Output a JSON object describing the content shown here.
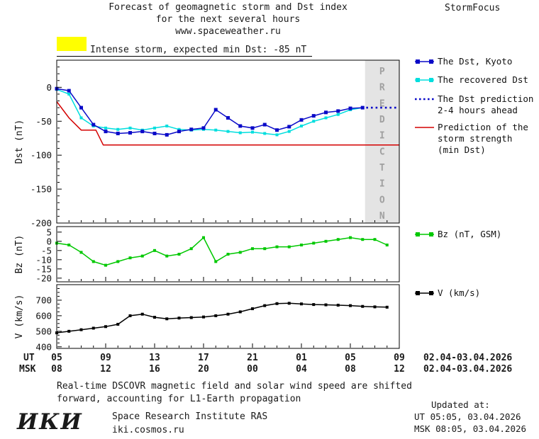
{
  "header": {
    "title_line1": "Forecast of geomagnetic storm and Dst index",
    "title_line2": "for the next several hours",
    "title_line3": "www.spaceweather.ru",
    "brand": "StormFocus"
  },
  "alert": {
    "swatch_color": "#ffff00",
    "text": "Intense storm, expected min Dst: -85 nT"
  },
  "legend": {
    "dst_kyoto": {
      "label": "The Dst, Kyoto",
      "color": "#0a0ac8",
      "marker": "square-line"
    },
    "recovered": {
      "label": "The recovered Dst",
      "color": "#00dede",
      "marker": "square-line"
    },
    "prediction": {
      "label_line1": "The Dst prediction",
      "label_line2": "2-4 hours ahead",
      "color": "#0a0ac8",
      "marker": "dotted-line"
    },
    "storm_strength": {
      "label_line1": "Prediction of the",
      "label_line2": "storm strength",
      "label_line3": "(min Dst)",
      "color": "#d40000",
      "marker": "line"
    },
    "bz": {
      "label": "Bz (nT, GSM)",
      "color": "#00c800",
      "marker": "square-line"
    },
    "v": {
      "label": "V (km/s)",
      "color": "#000000",
      "marker": "square-line"
    }
  },
  "axis": {
    "ut_label": "UT",
    "msk_label": "MSK",
    "tick_positions": [
      0,
      4,
      8,
      12,
      16,
      20,
      24,
      28
    ],
    "ut_ticks": [
      "05",
      "09",
      "13",
      "17",
      "21",
      "01",
      "05",
      "09"
    ],
    "msk_ticks": [
      "08",
      "12",
      "16",
      "20",
      "00",
      "04",
      "08",
      "12"
    ],
    "ut_date_range": "02.04-03.04.2026",
    "msk_date_range": "02.04-03.04.2026"
  },
  "chart_data": [
    {
      "type": "line",
      "ylabel": "Dst (nT)",
      "xlim": [
        0,
        28
      ],
      "ylim": [
        -200,
        40
      ],
      "yticks": [
        0,
        -50,
        -100,
        -150,
        -200
      ],
      "ytick_minor": 10,
      "band": {
        "start": 25.2,
        "label": "PREDICTION",
        "fill": "#e4e4e4",
        "text_color": "#a0a0a0"
      },
      "series": [
        {
          "name": "storm-strength-prediction",
          "color": "#d40000",
          "x": [
            0,
            1,
            2,
            3.2,
            3.8,
            28
          ],
          "y": [
            -21,
            -45,
            -63,
            -63,
            -85,
            -85
          ]
        },
        {
          "name": "recovered-dst",
          "color": "#00dede",
          "marker": "square",
          "marker_size": 4,
          "x": [
            0,
            1,
            2,
            3,
            4,
            5,
            6,
            7,
            8,
            9,
            10,
            11,
            12,
            13,
            14,
            15,
            16,
            17,
            18,
            19,
            20,
            21,
            22,
            23,
            24,
            25
          ],
          "y": [
            -3,
            -10,
            -45,
            -57,
            -60,
            -62,
            -60,
            -63,
            -60,
            -57,
            -62,
            -63,
            -62,
            -63,
            -65,
            -67,
            -66,
            -68,
            -70,
            -65,
            -57,
            -50,
            -45,
            -40,
            -33,
            -30
          ]
        },
        {
          "name": "dst-kyoto",
          "color": "#0a0ac8",
          "marker": "square",
          "marker_size": 5,
          "x": [
            0,
            1,
            2,
            3,
            4,
            5,
            6,
            7,
            8,
            9,
            10,
            11,
            12,
            13,
            14,
            15,
            16,
            17,
            18,
            19,
            20,
            21,
            22,
            23,
            24,
            25
          ],
          "y": [
            -2,
            -5,
            -30,
            -55,
            -65,
            -68,
            -67,
            -65,
            -68,
            -70,
            -65,
            -62,
            -60,
            -33,
            -45,
            -57,
            -60,
            -55,
            -63,
            -58,
            -48,
            -42,
            -37,
            -35,
            -31,
            -30
          ]
        },
        {
          "name": "dst-prediction",
          "color": "#0a0ac8",
          "style": "dotted",
          "x": [
            25.3,
            28
          ],
          "y": [
            -30,
            -30
          ]
        }
      ]
    },
    {
      "type": "line",
      "ylabel": "Bz (nT)",
      "xlim": [
        0,
        28
      ],
      "ylim": [
        -22,
        8
      ],
      "yticks": [
        5,
        0,
        -5,
        -10,
        -15,
        -20
      ],
      "series": [
        {
          "name": "bz",
          "color": "#00c800",
          "marker": "square",
          "marker_size": 4,
          "x": [
            0,
            1,
            2,
            3,
            4,
            5,
            6,
            7,
            8,
            9,
            10,
            11,
            12,
            13,
            14,
            15,
            16,
            17,
            18,
            19,
            20,
            21,
            22,
            23,
            24,
            25,
            26,
            27
          ],
          "y": [
            -1,
            -2,
            -6,
            -11,
            -13,
            -11,
            -9,
            -8,
            -5,
            -8,
            -7,
            -4,
            2,
            -11,
            -7,
            -6,
            -4,
            -4,
            -3,
            -3,
            -2,
            -1,
            0,
            1,
            2,
            1,
            1,
            -2
          ]
        }
      ]
    },
    {
      "type": "line",
      "ylabel": "V (km/s)",
      "xlim": [
        0,
        28
      ],
      "ylim": [
        390,
        800
      ],
      "yticks": [
        400,
        500,
        600,
        700
      ],
      "ytick_minor": 25,
      "series": [
        {
          "name": "v",
          "color": "#000000",
          "marker": "square",
          "marker_size": 4,
          "x": [
            0,
            1,
            2,
            3,
            4,
            5,
            6,
            7,
            8,
            9,
            10,
            11,
            12,
            13,
            14,
            15,
            16,
            17,
            18,
            19,
            20,
            21,
            22,
            23,
            24,
            25,
            26,
            27
          ],
          "y": [
            490,
            500,
            510,
            520,
            530,
            545,
            600,
            610,
            590,
            580,
            585,
            588,
            592,
            600,
            610,
            625,
            645,
            665,
            678,
            680,
            676,
            672,
            670,
            668,
            665,
            660,
            657,
            655
          ]
        }
      ]
    }
  ],
  "footer": {
    "note_line1": "Real-time DSCOVR magnetic field and solar wind speed are shifted",
    "note_line2": "forward, accounting for L1-Earth propagation",
    "updated_label": "Updated at:",
    "updated_ut": "UT  05:05, 03.04.2026",
    "updated_msk": "MSK 08:05, 03.04.2026",
    "logo_text": "ИКИ",
    "institute": "Space Research Institute RAS",
    "website": "iki.cosmos.ru"
  }
}
